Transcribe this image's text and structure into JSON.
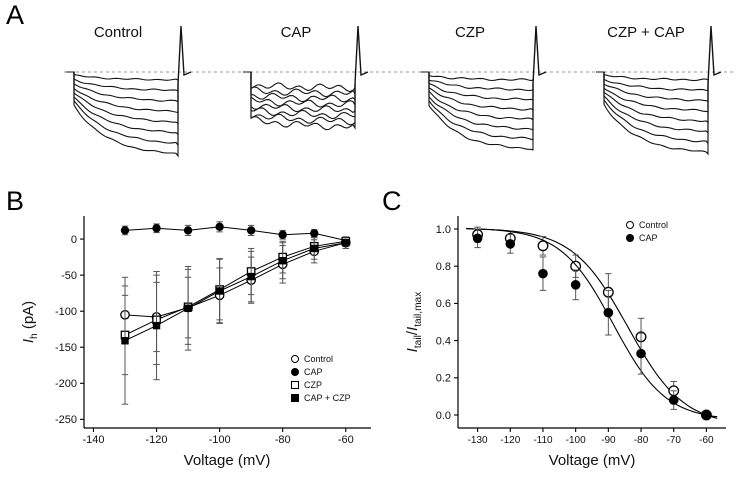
{
  "figure": {
    "panel_a_label": "A",
    "panel_b_label": "B",
    "panel_c_label": "C"
  },
  "chart_data": [
    {
      "id": "panel_a",
      "type": "traces",
      "baseline": "dashed zero-current reference line",
      "conditions": [
        {
          "label": "Control",
          "max_current": "large"
        },
        {
          "label": "CAP",
          "max_current": "small"
        },
        {
          "label": "CZP",
          "max_current": "large"
        },
        {
          "label": "CZP + CAP",
          "max_current": "large"
        }
      ]
    },
    {
      "id": "panel_b",
      "type": "scatter",
      "xlabel": "Voltage (mV)",
      "ylabel_pre": "I",
      "ylabel_sub": "h",
      "ylabel_post": " (pA)",
      "x": [
        -130,
        -120,
        -110,
        -100,
        -90,
        -80,
        -70,
        -60
      ],
      "xlim": [
        -143,
        -52
      ],
      "ylim": [
        -262,
        32
      ],
      "xticks": [
        -140,
        -120,
        -100,
        -80,
        -60
      ],
      "yticks": [
        0,
        -50,
        -100,
        -150,
        -200,
        -250
      ],
      "ytick_decimals": 0,
      "connect": true,
      "legend_position": "bottom-right",
      "series": [
        {
          "name": "Control",
          "marker": "open-circle",
          "values": [
            -105,
            -108,
            -95,
            -78,
            -57,
            -35,
            -17,
            -5
          ],
          "errors": [
            40,
            48,
            42,
            38,
            32,
            26,
            16,
            8
          ]
        },
        {
          "name": "CAP",
          "marker": "filled-circle",
          "values": [
            12,
            15,
            12,
            17,
            12,
            6,
            8,
            -2
          ],
          "errors": [
            6,
            6,
            7,
            7,
            7,
            6,
            5,
            4
          ]
        },
        {
          "name": "CZP",
          "marker": "open-square",
          "values": [
            -133,
            -112,
            -94,
            -70,
            -45,
            -25,
            -10,
            -3
          ],
          "errors": [
            55,
            62,
            52,
            42,
            32,
            22,
            12,
            6
          ]
        },
        {
          "name": "CAP + CZP",
          "marker": "filled-square",
          "values": [
            -141,
            -120,
            -96,
            -72,
            -52,
            -30,
            -13,
            -5
          ],
          "errors": [
            88,
            75,
            58,
            45,
            35,
            25,
            15,
            8
          ]
        }
      ]
    },
    {
      "id": "panel_c",
      "type": "scatter",
      "xlabel": "Voltage (mV)",
      "ylabel_pre": "I",
      "ylabel_sub": "tail",
      "ylabel_mid": "/",
      "ylabel_pre2": "I",
      "ylabel_sub2": "tail,max",
      "x": [
        -130,
        -120,
        -110,
        -100,
        -90,
        -80,
        -70,
        -60
      ],
      "xlim": [
        -136,
        -54
      ],
      "ylim": [
        -0.07,
        1.07
      ],
      "xticks": [
        -130,
        -120,
        -110,
        -100,
        -90,
        -80,
        -70,
        -60
      ],
      "yticks": [
        1.0,
        0.8,
        0.6,
        0.4,
        0.2,
        0.0
      ],
      "ytick_decimals": 1,
      "connect": false,
      "legend_position": "top-right",
      "series": [
        {
          "name": "Control",
          "marker": "open-circle",
          "values": [
            0.97,
            0.95,
            0.91,
            0.8,
            0.66,
            0.42,
            0.13,
            0.0
          ],
          "errors": [
            0.04,
            0.04,
            0.05,
            0.06,
            0.1,
            0.1,
            0.05,
            0.02
          ],
          "fit": {
            "v_half": -84,
            "slope": 8.5
          }
        },
        {
          "name": "CAP",
          "marker": "filled-circle",
          "values": [
            0.95,
            0.92,
            0.76,
            0.7,
            0.55,
            0.33,
            0.08,
            0.0
          ],
          "errors": [
            0.05,
            0.05,
            0.09,
            0.08,
            0.12,
            0.11,
            0.05,
            0.02
          ],
          "fit": {
            "v_half": -88.5,
            "slope": 8.0
          }
        }
      ]
    }
  ]
}
